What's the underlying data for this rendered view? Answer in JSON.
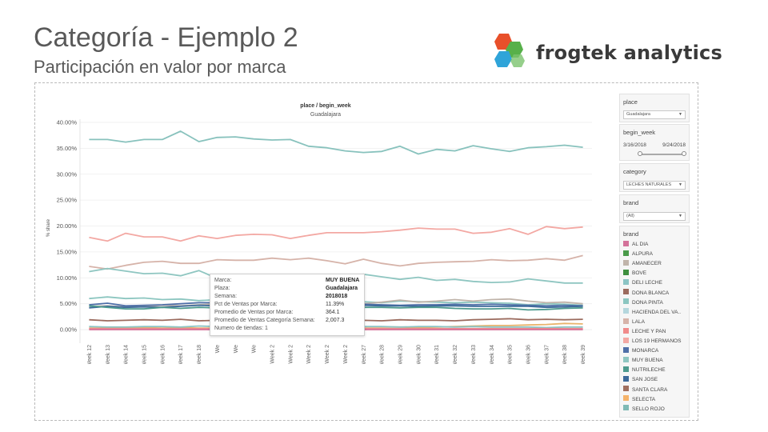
{
  "slide": {
    "title": "Categoría - Ejemplo 2",
    "subtitle": "Participación en valor por marca",
    "logo_text": "frogtek analytics"
  },
  "filters": {
    "place": {
      "label": "place",
      "value": "Guadalajara"
    },
    "begin_week": {
      "label": "begin_week",
      "start": "3/16/2018",
      "end": "9/24/2018"
    },
    "category": {
      "label": "category",
      "value": "LECHES NATURALES"
    },
    "brand": {
      "label": "brand",
      "value": "(All)"
    }
  },
  "legend": {
    "title": "brand",
    "items": [
      {
        "name": "AL DIA",
        "color": "#d4729a"
      },
      {
        "name": "ALPURA",
        "color": "#4a9a4a"
      },
      {
        "name": "AMANECER",
        "color": "#c0b4aa"
      },
      {
        "name": "BOVE",
        "color": "#3f8f3f"
      },
      {
        "name": "DELI LECHE",
        "color": "#8cc4c4"
      },
      {
        "name": "DONA BLANCA",
        "color": "#9b6b5e"
      },
      {
        "name": "DONA PINTA",
        "color": "#8cc6c0"
      },
      {
        "name": "HACIENDA DEL VA..",
        "color": "#b5d7dd"
      },
      {
        "name": "LALA",
        "color": "#d6b3a9"
      },
      {
        "name": "LECHE Y PAN",
        "color": "#f08a8a"
      },
      {
        "name": "LOS 19 HERMANOS",
        "color": "#f3a8a3"
      },
      {
        "name": "MONARCA",
        "color": "#4f6fa8"
      },
      {
        "name": "MUY BUENA",
        "color": "#8fc6c1"
      },
      {
        "name": "NUTRILECHE",
        "color": "#4d9a8e"
      },
      {
        "name": "SAN JOSE",
        "color": "#3d6a9a"
      },
      {
        "name": "SANTA CLARA",
        "color": "#a07060"
      },
      {
        "name": "SELECTA",
        "color": "#f5b36b"
      },
      {
        "name": "SELLO ROJO",
        "color": "#7fbab5"
      }
    ]
  },
  "tooltip": {
    "rows": [
      {
        "label": "Marca:",
        "value": "MUY BUENA",
        "bold": true
      },
      {
        "label": "Plaza:",
        "value": "Guadalajara",
        "bold": true
      },
      {
        "label": "Semana:",
        "value": "2018018",
        "bold": true
      },
      {
        "label": "Pct de Ventas por Marca:",
        "value": "11.39%",
        "bold": false
      },
      {
        "label": "Promedio de Ventas por Marca:",
        "value": "364.1",
        "bold": false
      },
      {
        "label": "Promedio de Ventas Categoría Semana:",
        "value": "2,007.3",
        "bold": false
      },
      {
        "label": "Numero de tiendas: 1",
        "value": "",
        "bold": false
      }
    ]
  },
  "chart_data": {
    "type": "line",
    "title": "place / begin_week",
    "subtitle": "Guadalajara",
    "ylabel": "% share",
    "xlabel": "",
    "ylim": [
      -0.02,
      0.4
    ],
    "yticks": [
      0.0,
      0.05,
      0.1,
      0.15,
      0.2,
      0.25,
      0.3,
      0.35,
      0.4
    ],
    "ytick_labels": [
      "0.00%",
      "5.00%",
      "10.00%",
      "15.00%",
      "20.00%",
      "25.00%",
      "30.00%",
      "35.00%",
      "40.00%"
    ],
    "grid": true,
    "categories": [
      "Week 12",
      "Week 13",
      "Week 14",
      "Week 15",
      "Week 16",
      "Week 17",
      "Week 18",
      "Week 19",
      "Week 20",
      "Week 21",
      "Week 22",
      "Week 23",
      "Week 24",
      "Week 25",
      "Week 26",
      "Week 27",
      "Week 28",
      "Week 29",
      "Week 30",
      "Week 31",
      "Week 32",
      "Week 33",
      "Week 34",
      "Week 35",
      "Week 36",
      "Week 37",
      "Week 38",
      "Week 39"
    ],
    "xtick_labels": [
      "Week 12",
      "Week 13",
      "Week 14",
      "Week 15",
      "Week 16",
      "Week 17",
      "Week 18",
      "We",
      "We",
      "We",
      "Week 2",
      "Week 2",
      "Week 2",
      "Week 2",
      "Week 2",
      "Week 27",
      "Week 28",
      "Week 29",
      "Week 30",
      "Week 31",
      "Week 32",
      "Week 33",
      "Week 34",
      "Week 35",
      "Week 36",
      "Week 37",
      "Week 38",
      "Week 39"
    ],
    "series": [
      {
        "name": "SELLO ROJO",
        "color": "#88c2bd",
        "values": [
          0.367,
          0.367,
          0.362,
          0.367,
          0.367,
          0.383,
          0.363,
          0.371,
          0.372,
          0.368,
          0.366,
          0.367,
          0.354,
          0.351,
          0.345,
          0.342,
          0.344,
          0.354,
          0.339,
          0.348,
          0.345,
          0.355,
          0.349,
          0.344,
          0.351,
          0.353,
          0.356,
          0.352
        ]
      },
      {
        "name": "LOS 19 HERMANOS",
        "color": "#f3a8a3",
        "values": [
          0.178,
          0.171,
          0.186,
          0.179,
          0.179,
          0.171,
          0.181,
          0.176,
          0.182,
          0.184,
          0.183,
          0.176,
          0.182,
          0.187,
          0.187,
          0.187,
          0.189,
          0.192,
          0.196,
          0.194,
          0.194,
          0.186,
          0.188,
          0.195,
          0.184,
          0.199,
          0.195,
          0.198
        ]
      },
      {
        "name": "LALA",
        "color": "#d6b3a9",
        "values": [
          0.122,
          0.117,
          0.124,
          0.13,
          0.132,
          0.128,
          0.128,
          0.135,
          0.134,
          0.134,
          0.138,
          0.135,
          0.138,
          0.133,
          0.127,
          0.136,
          0.128,
          0.123,
          0.128,
          0.13,
          0.131,
          0.132,
          0.135,
          0.133,
          0.134,
          0.137,
          0.134,
          0.143
        ]
      },
      {
        "name": "MUY BUENA",
        "color": "#8fc6c1",
        "values": [
          0.112,
          0.118,
          0.113,
          0.108,
          0.109,
          0.104,
          0.114,
          0.099,
          0.106,
          0.103,
          0.099,
          0.103,
          0.098,
          0.101,
          0.103,
          0.107,
          0.102,
          0.097,
          0.101,
          0.095,
          0.097,
          0.093,
          0.091,
          0.092,
          0.098,
          0.094,
          0.09,
          0.09
        ]
      },
      {
        "name": "DONA PINTA",
        "color": "#8cc6c0",
        "values": [
          0.06,
          0.063,
          0.06,
          0.061,
          0.058,
          0.059,
          0.056,
          0.058,
          0.054,
          0.055,
          0.052,
          0.053,
          0.051,
          0.052,
          0.053,
          0.054,
          0.052,
          0.055,
          0.054,
          0.053,
          0.052,
          0.053,
          0.052,
          0.051,
          0.048,
          0.05,
          0.049,
          0.047
        ]
      },
      {
        "name": "AMANECER",
        "color": "#c0b4aa",
        "values": [
          0.045,
          0.046,
          0.044,
          0.045,
          0.047,
          0.046,
          0.048,
          0.05,
          0.048,
          0.05,
          0.051,
          0.052,
          0.053,
          0.051,
          0.052,
          0.05,
          0.053,
          0.057,
          0.053,
          0.055,
          0.058,
          0.055,
          0.058,
          0.059,
          0.055,
          0.052,
          0.053,
          0.05
        ]
      },
      {
        "name": "MONARCA",
        "color": "#4f6fa8",
        "values": [
          0.048,
          0.051,
          0.046,
          0.047,
          0.048,
          0.05,
          0.052,
          0.052,
          0.05,
          0.049,
          0.05,
          0.049,
          0.05,
          0.049,
          0.048,
          0.049,
          0.048,
          0.047,
          0.048,
          0.048,
          0.049,
          0.048,
          0.049,
          0.048,
          0.047,
          0.046,
          0.047,
          0.046
        ]
      },
      {
        "name": "SAN JOSE",
        "color": "#3d6a9a",
        "values": [
          0.042,
          0.045,
          0.043,
          0.044,
          0.043,
          0.045,
          0.047,
          0.046,
          0.046,
          0.047,
          0.046,
          0.046,
          0.047,
          0.046,
          0.046,
          0.047,
          0.046,
          0.046,
          0.045,
          0.046,
          0.046,
          0.045,
          0.045,
          0.045,
          0.045,
          0.043,
          0.044,
          0.045
        ]
      },
      {
        "name": "NUTRILECHE",
        "color": "#4d9a8e",
        "values": [
          0.046,
          0.043,
          0.04,
          0.04,
          0.043,
          0.041,
          0.043,
          0.042,
          0.043,
          0.042,
          0.044,
          0.043,
          0.044,
          0.043,
          0.043,
          0.043,
          0.043,
          0.042,
          0.043,
          0.043,
          0.041,
          0.04,
          0.04,
          0.041,
          0.038,
          0.039,
          0.041,
          0.042
        ]
      },
      {
        "name": "DONA BLANCA",
        "color": "#9b6b5e",
        "values": [
          0.019,
          0.017,
          0.018,
          0.019,
          0.018,
          0.02,
          0.017,
          0.018,
          0.019,
          0.019,
          0.018,
          0.02,
          0.019,
          0.018,
          0.019,
          0.018,
          0.017,
          0.019,
          0.018,
          0.018,
          0.017,
          0.019,
          0.02,
          0.021,
          0.019,
          0.02,
          0.019,
          0.02
        ]
      },
      {
        "name": "SELECTA",
        "color": "#e9b36b",
        "values": [
          0.003,
          0.003,
          0.003,
          0.004,
          0.003,
          0.004,
          0.003,
          0.003,
          0.004,
          0.003,
          0.003,
          0.004,
          0.003,
          0.004,
          0.004,
          0.005,
          0.005,
          0.005,
          0.004,
          0.005,
          0.006,
          0.007,
          0.008,
          0.008,
          0.009,
          0.01,
          0.012,
          0.011
        ]
      },
      {
        "name": "DELI LECHE",
        "color": "#8cc4c4",
        "values": [
          0.006,
          0.005,
          0.005,
          0.006,
          0.006,
          0.005,
          0.007,
          0.006,
          0.007,
          0.006,
          0.006,
          0.007,
          0.006,
          0.006,
          0.007,
          0.006,
          0.006,
          0.005,
          0.006,
          0.006,
          0.005,
          0.006,
          0.005,
          0.005,
          0.005,
          0.004,
          0.005,
          0.005
        ]
      },
      {
        "name": "LECHE Y PAN",
        "color": "#f08a8a",
        "values": [
          0.002,
          0.002,
          0.002,
          0.002,
          0.002,
          0.002,
          0.002,
          0.002,
          0.002,
          0.002,
          0.002,
          0.002,
          0.002,
          0.002,
          0.002,
          0.002,
          0.002,
          0.002,
          0.002,
          0.002,
          0.002,
          0.002,
          0.002,
          0.002,
          0.002,
          0.002,
          0.002,
          0.002
        ]
      },
      {
        "name": "AL DIA",
        "color": "#d4729a",
        "values": [
          0.0,
          0.0,
          0.0,
          0.0,
          0.0,
          0.0,
          0.0,
          0.0,
          0.0,
          0.0,
          0.0,
          0.0,
          0.0,
          0.0,
          0.0,
          0.0,
          0.0,
          0.0,
          0.0,
          0.0,
          0.0,
          0.0,
          0.0,
          0.0,
          0.0,
          0.0,
          0.0,
          0.0
        ]
      }
    ]
  }
}
